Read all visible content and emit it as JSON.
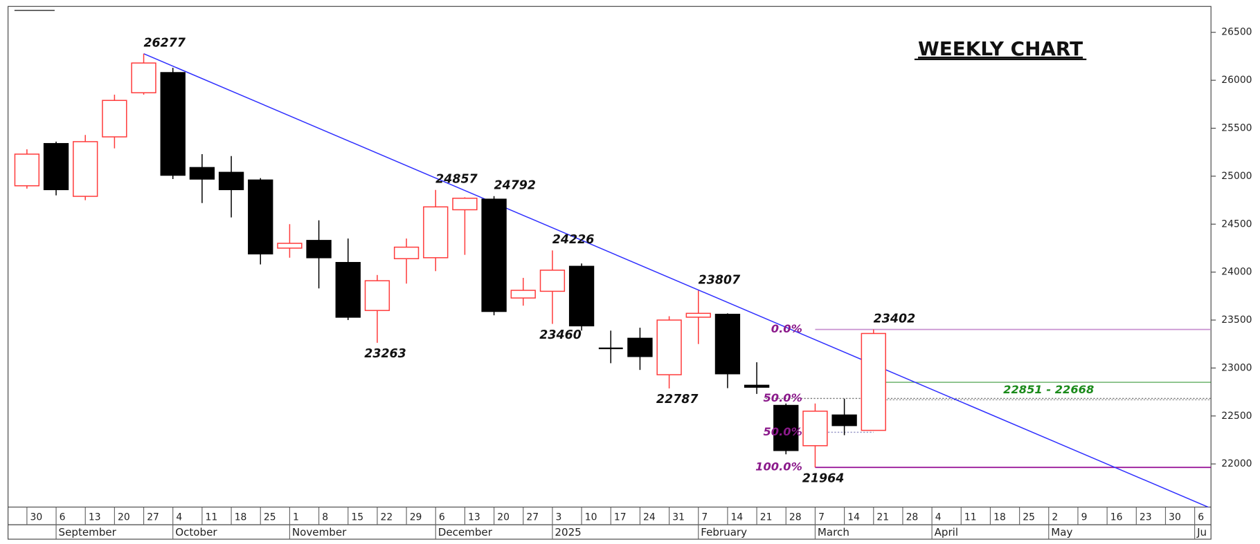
{
  "chart_data": {
    "type": "candlestick",
    "title": "WEEKLY CHART",
    "categories": [
      "30",
      "6",
      "13",
      "20",
      "27",
      "4",
      "11",
      "18",
      "25",
      "1",
      "8",
      "15",
      "22",
      "29",
      "6",
      "13",
      "20",
      "27",
      "3",
      "10",
      "17",
      "24",
      "31",
      "7",
      "14",
      "21",
      "28",
      "7",
      "14",
      "21",
      "28",
      "4",
      "11",
      "18",
      "25",
      "2",
      "9",
      "16",
      "23",
      "30",
      "6"
    ],
    "months": [
      {
        "label": "September",
        "index": 1
      },
      {
        "label": "October",
        "index": 5
      },
      {
        "label": "November",
        "index": 9
      },
      {
        "label": "December",
        "index": 14
      },
      {
        "label": "2025",
        "index": 18
      },
      {
        "label": "February",
        "index": 23
      },
      {
        "label": "March",
        "index": 27
      },
      {
        "label": "April",
        "index": 31
      },
      {
        "label": "May",
        "index": 35
      },
      {
        "label": "Ju",
        "index": 40
      }
    ],
    "open": [
      24900,
      25340,
      24790,
      25410,
      25870,
      26080,
      25090,
      25040,
      24960,
      24250,
      24330,
      24100,
      23600,
      24140,
      24150,
      24650,
      24760,
      23730,
      23800,
      24060,
      23210,
      23310,
      22930,
      23530,
      23560,
      22820,
      22610,
      22190,
      22510,
      22350,
      null,
      null,
      null,
      null,
      null,
      null,
      null,
      null,
      null,
      null,
      null
    ],
    "high": [
      25280,
      25360,
      25430,
      25850,
      26277,
      26130,
      25230,
      25210,
      24980,
      24500,
      24540,
      24350,
      23970,
      24350,
      24857,
      24780,
      24792,
      23940,
      24226,
      24090,
      23390,
      23420,
      23540,
      23807,
      23570,
      23060,
      22630,
      22630,
      22680,
      23402,
      null,
      null,
      null,
      null,
      null,
      null,
      null,
      null,
      null,
      null,
      null
    ],
    "low": [
      24870,
      24800,
      24750,
      25290,
      25850,
      24970,
      24720,
      24570,
      24080,
      24150,
      23830,
      23500,
      23263,
      23880,
      24010,
      24180,
      23550,
      23650,
      23460,
      23390,
      23050,
      22980,
      22787,
      23250,
      22790,
      22730,
      22100,
      21964,
      22300,
      22350,
      null,
      null,
      null,
      null,
      null,
      null,
      null,
      null,
      null,
      null,
      null
    ],
    "close": [
      25230,
      24860,
      25360,
      25790,
      26180,
      25010,
      24970,
      24860,
      24190,
      24300,
      24150,
      23530,
      23910,
      24260,
      24680,
      24770,
      23590,
      23810,
      24020,
      23440,
      23200,
      23120,
      23500,
      23570,
      22940,
      22800,
      22140,
      22550,
      22400,
      23360,
      null,
      null,
      null,
      null,
      null,
      null,
      null,
      null,
      null,
      null,
      null
    ],
    "up_color": "#ff3b3b",
    "down_color": "#000000",
    "labeled_highs": [
      4,
      14,
      16,
      18,
      23,
      29
    ],
    "labeled_lows": [
      12,
      18,
      22,
      27
    ],
    "trendline": {
      "from": 4,
      "to": 41,
      "values": [
        26277,
        21480
      ],
      "color": "#2f2fff"
    },
    "levels": [
      {
        "label": "0.0%",
        "value": 23402,
        "from": 27,
        "color": "#c890d0",
        "dash": false
      },
      {
        "label": "50.0%",
        "value": 22683,
        "from": 25.3,
        "color": "#777777",
        "dash": true
      },
      {
        "label": "50.0%",
        "value": 22330,
        "from": 27,
        "to": 29,
        "color": "#9a9ac8",
        "dash": true
      },
      {
        "label": "100.0%",
        "value": 21964,
        "from": 27,
        "color": "#9a1a9a",
        "dash": false
      }
    ],
    "zone": {
      "label": "22851 - 22668",
      "values": [
        22851,
        22668
      ],
      "from": 29,
      "color": "#1a8a1a"
    },
    "ylim": [
      21550,
      26770
    ],
    "yticks": [
      22000,
      22500,
      23000,
      23500,
      24000,
      24500,
      25000,
      25500,
      26000,
      26500
    ]
  }
}
